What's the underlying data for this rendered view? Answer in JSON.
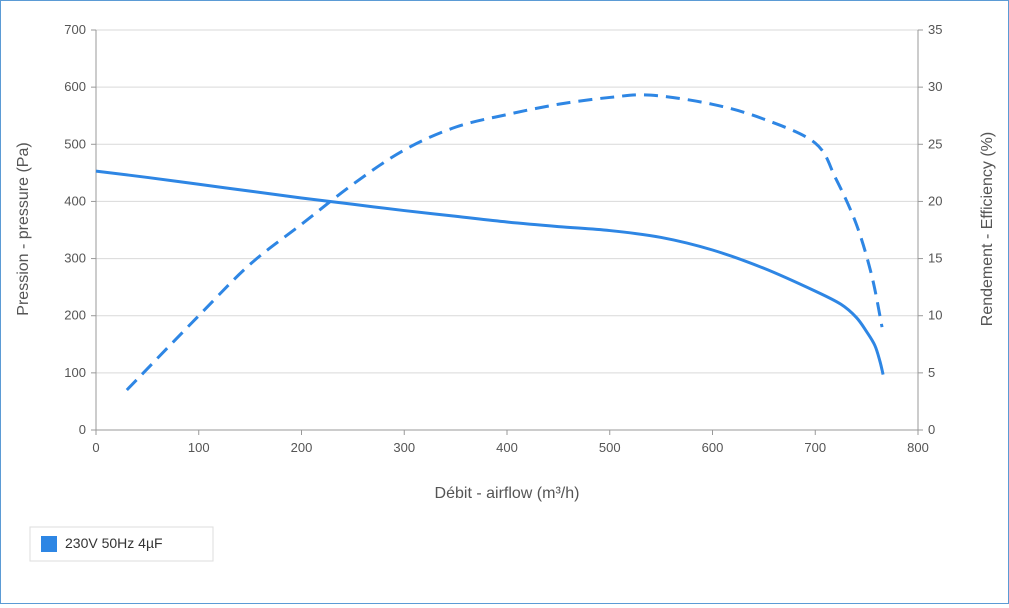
{
  "colors": {
    "series": "#2e86e4",
    "axis": "#999999",
    "grid": "#d9d9d9",
    "tick_text": "#555555",
    "label_text": "#555555",
    "frame": "#5b9bd5"
  },
  "legend": {
    "label": "230V 50Hz 4µF",
    "swatch_color": "#2e86e4",
    "placement": "bottom-left"
  },
  "chart_data": {
    "type": "line",
    "title": "",
    "xlabel": "Débit - airflow (m³/h)",
    "ylabel_left": "Pression - pressure (Pa)",
    "ylabel_right": "Rendement - Efficiency (%)",
    "xlim": [
      0,
      800
    ],
    "ylim_left": [
      0,
      700
    ],
    "ylim_right": [
      0,
      35
    ],
    "x_ticks": [
      "0",
      "100",
      "200",
      "300",
      "400",
      "500",
      "600",
      "700",
      "800"
    ],
    "y_left_ticks": [
      "0",
      "100",
      "200",
      "300",
      "400",
      "500",
      "600",
      "700"
    ],
    "y_right_ticks": [
      "0",
      "5",
      "10",
      "15",
      "20",
      "25",
      "30",
      "35"
    ],
    "grid": true,
    "series": [
      {
        "name": "230V 50Hz 4µF",
        "axis": "left",
        "style": "solid",
        "points": [
          [
            0,
            453
          ],
          [
            50,
            442
          ],
          [
            100,
            430
          ],
          [
            150,
            418
          ],
          [
            200,
            406
          ],
          [
            250,
            395
          ],
          [
            300,
            384
          ],
          [
            350,
            374
          ],
          [
            400,
            364
          ],
          [
            450,
            356
          ],
          [
            500,
            349
          ],
          [
            550,
            337
          ],
          [
            600,
            315
          ],
          [
            650,
            283
          ],
          [
            700,
            243
          ],
          [
            725,
            220
          ],
          [
            740,
            197
          ],
          [
            750,
            172
          ],
          [
            758,
            148
          ],
          [
            763,
            120
          ],
          [
            766,
            97
          ]
        ]
      },
      {
        "name": "230V 50Hz 4µF",
        "axis": "right",
        "style": "dashed",
        "points": [
          [
            30,
            3.5
          ],
          [
            100,
            10
          ],
          [
            150,
            14.5
          ],
          [
            200,
            18
          ],
          [
            250,
            21.5
          ],
          [
            300,
            24.5
          ],
          [
            350,
            26.5
          ],
          [
            400,
            27.6
          ],
          [
            450,
            28.5
          ],
          [
            500,
            29.1
          ],
          [
            540,
            29.3
          ],
          [
            600,
            28.5
          ],
          [
            650,
            27.2
          ],
          [
            700,
            25.1
          ],
          [
            720,
            22
          ],
          [
            740,
            18
          ],
          [
            755,
            13.5
          ],
          [
            765,
            9
          ]
        ]
      }
    ]
  }
}
